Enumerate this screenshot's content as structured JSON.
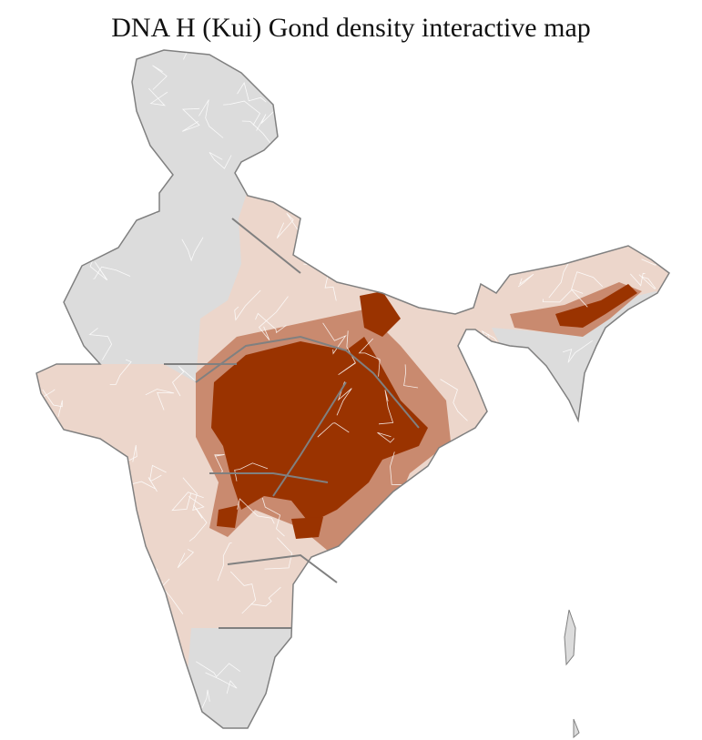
{
  "title": "DNA H (Kui) Gond density interactive map",
  "colors": {
    "no_data": "#dcdcdc",
    "low": "#ecd6cb",
    "medium": "#c98a6f",
    "high": "#9a3300",
    "state_border": "#808080",
    "district_border": "#ffffff"
  }
}
